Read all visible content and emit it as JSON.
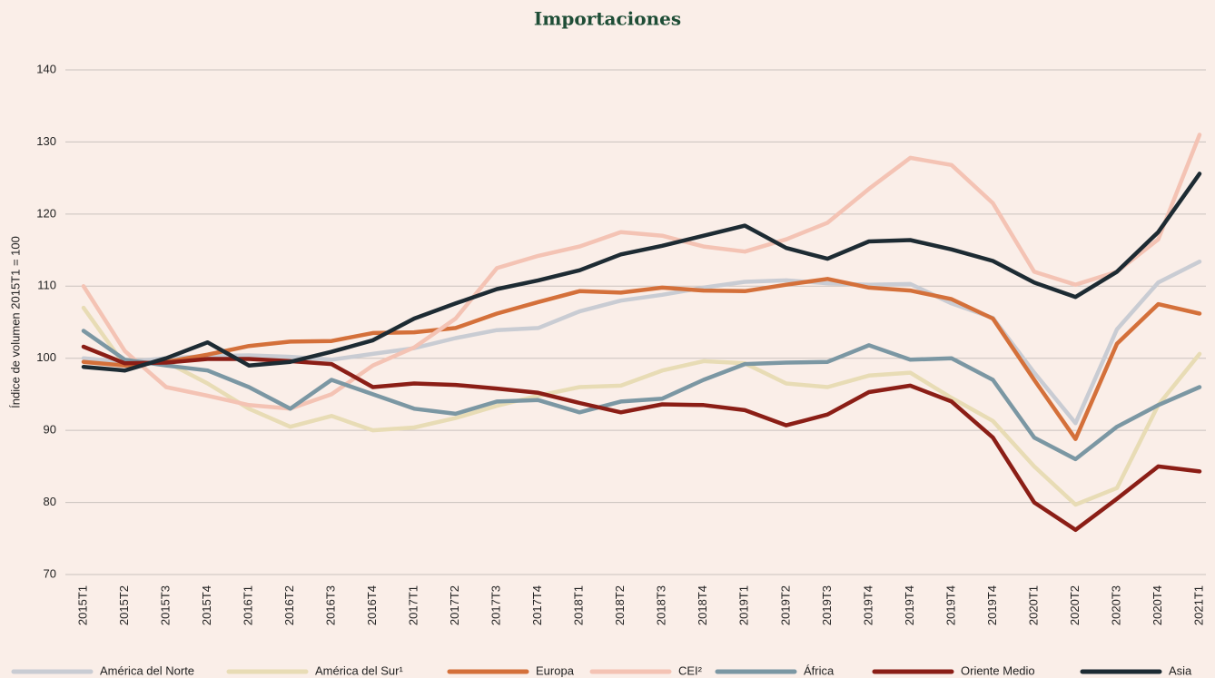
{
  "chart_data": {
    "type": "line",
    "title": "Importaciones",
    "y_label": "Índice de volumen 2015T1 = 100",
    "categories": [
      "2015T1",
      "2015T2",
      "2015T3",
      "2015T4",
      "2016T1",
      "2016T2",
      "2016T3",
      "2016T4",
      "2017T1",
      "2017T2",
      "2017T3",
      "2017T4",
      "2018T1",
      "2018T2",
      "2018T3",
      "2018T4",
      "2019T1",
      "2019T2",
      "2019T3",
      "2019T4",
      "2019T4",
      "2019T4",
      "2019T4",
      "2020T1",
      "2020T2",
      "2020T3",
      "2020T4",
      "2021T1"
    ],
    "ylim": [
      70,
      140
    ],
    "yticks": [
      70,
      80,
      90,
      100,
      110,
      120,
      130,
      140
    ],
    "grid": true,
    "legend": "bottom",
    "series": [
      {
        "name": "América del Norte",
        "color": "#c9ccd3",
        "values": [
          100,
          99.5,
          100,
          100.3,
          100.4,
          100.2,
          99.8,
          100.6,
          101.4,
          102.8,
          103.9,
          104.2,
          106.5,
          108,
          108.8,
          109.8,
          110.6,
          110.8,
          110.4,
          110.2,
          110.3,
          107.6,
          105.6,
          98,
          91,
          104,
          110.5,
          113.4
        ]
      },
      {
        "name": "América del Sur¹",
        "color": "#e8dcb5",
        "values": [
          107,
          99,
          99.5,
          96.5,
          93,
          90.5,
          92,
          90,
          90.4,
          91.7,
          93.4,
          94.8,
          96,
          96.2,
          98.3,
          99.6,
          99.3,
          96.5,
          96,
          97.6,
          98,
          94.5,
          91.3,
          85,
          79.7,
          82,
          93.5,
          100.6
        ]
      },
      {
        "name": "Europa",
        "color": "#d4703a",
        "values": [
          99.5,
          99,
          99.5,
          100.5,
          101.7,
          102.3,
          102.4,
          103.5,
          103.6,
          104.2,
          106.2,
          107.8,
          109.3,
          109.1,
          109.8,
          109.4,
          109.3,
          110.2,
          111,
          109.8,
          109.4,
          108.2,
          105.5,
          97,
          88.8,
          102,
          107.5,
          106.2
        ]
      },
      {
        "name": "CEI²",
        "color": "#f4c3b4",
        "values": [
          110,
          101,
          96,
          94.8,
          93.5,
          93,
          95,
          99,
          101.5,
          105.5,
          112.5,
          114.2,
          115.5,
          117.5,
          117,
          115.5,
          114.8,
          116.5,
          118.8,
          123.5,
          127.8,
          126.8,
          121.5,
          112,
          110.2,
          112,
          116.5,
          131
        ]
      },
      {
        "name": "África",
        "color": "#7b97a3",
        "values": [
          103.8,
          99.8,
          99,
          98.3,
          96,
          93,
          97,
          95,
          93,
          92.3,
          94,
          94.2,
          92.5,
          94,
          94.4,
          97,
          99.2,
          99.4,
          99.5,
          101.8,
          99.8,
          100,
          97,
          89,
          86,
          90.5,
          93.5,
          96
        ]
      },
      {
        "name": "Oriente Medio",
        "color": "#8b1e16",
        "values": [
          101.6,
          99.3,
          99.4,
          99.9,
          99.9,
          99.6,
          99.2,
          96,
          96.5,
          96.3,
          95.8,
          95.2,
          93.8,
          92.5,
          93.6,
          93.5,
          92.8,
          90.7,
          92.2,
          95.3,
          96.2,
          94,
          89,
          80,
          76.2,
          80.5,
          85,
          84.3
        ]
      },
      {
        "name": "Asia",
        "color": "#1d2b33",
        "values": [
          98.8,
          98.3,
          100,
          102.2,
          99,
          99.5,
          100.9,
          102.5,
          105.5,
          107.6,
          109.6,
          110.8,
          112.2,
          114.4,
          115.6,
          117,
          118.4,
          115.3,
          113.8,
          116.2,
          116.4,
          115.1,
          113.5,
          110.5,
          108.5,
          112,
          117.5,
          125.6
        ]
      }
    ]
  }
}
